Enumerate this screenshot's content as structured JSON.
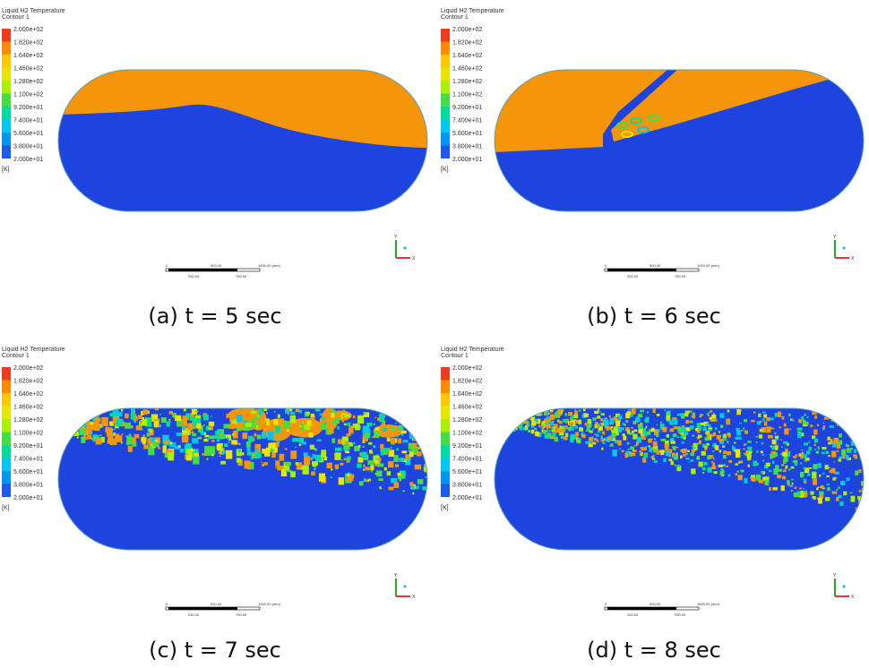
{
  "legend": {
    "title": "Liquid H2 Temperature",
    "subtitle": "Contour 1",
    "labels": [
      "2.000e+02",
      "1.820e+02",
      "1.640e+02",
      "1.460e+02",
      "1.280e+02",
      "1.100e+02",
      "9.200e+01",
      "7.400e+01",
      "5.600e+01",
      "3.800e+01",
      "2.000e+01"
    ],
    "unit": "[K]"
  },
  "scale_bar": {
    "labels": [
      "0",
      "500.00",
      "1000.00 (mm)",
      "250.00",
      "750.00"
    ]
  },
  "axes": {
    "y": "Y",
    "x": "X"
  },
  "panels": [
    {
      "caption": "(a) t = 5 sec"
    },
    {
      "caption": "(b) t = 6 sec"
    },
    {
      "caption": "(c) t = 7 sec"
    },
    {
      "caption": "(d) t = 8 sec"
    }
  ]
}
